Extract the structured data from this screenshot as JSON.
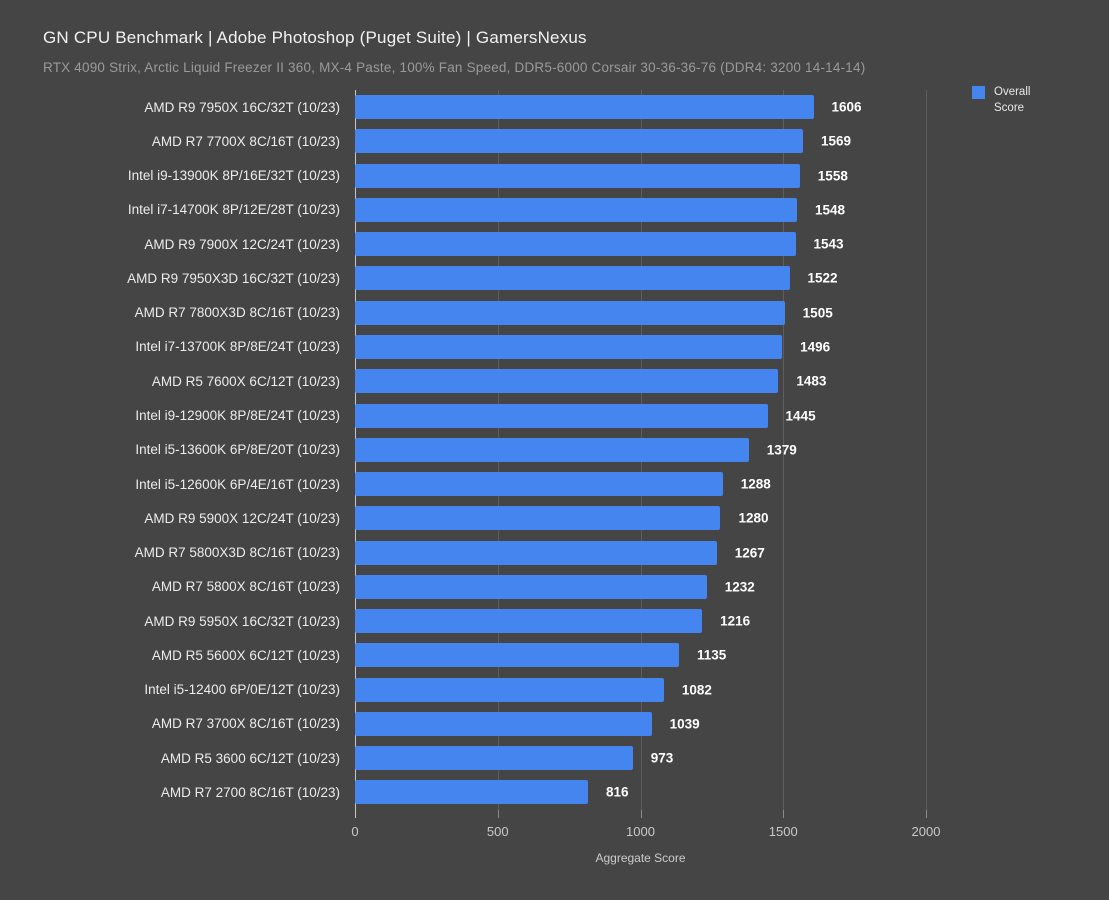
{
  "header": {
    "title": "GN CPU Benchmark | Adobe Photoshop (Puget Suite) | GamersNexus",
    "subtitle": "RTX 4090 Strix, Arctic Liquid Freezer II 360, MX-4 Paste, 100% Fan Speed, DDR5-6000 Corsair 30-36-36-76 (DDR4: 3200 14-14-14)"
  },
  "legend": {
    "label": "Overall Score",
    "swatch_color": "#4585f0",
    "position": "top-right"
  },
  "chart_data": {
    "type": "bar",
    "orientation": "horizontal",
    "title": "GN CPU Benchmark | Adobe Photoshop (Puget Suite) | GamersNexus",
    "subtitle": "RTX 4090 Strix, Arctic Liquid Freezer II 360, MX-4 Paste, 100% Fan Speed, DDR5-6000 Corsair 30-36-36-76 (DDR4: 3200 14-14-14)",
    "series_name": "Overall Score",
    "categories": [
      "AMD R9 7950X 16C/32T (10/23)",
      "AMD R7 7700X 8C/16T (10/23)",
      "Intel i9-13900K 8P/16E/32T (10/23)",
      "Intel i7-14700K 8P/12E/28T (10/23)",
      "AMD R9 7900X 12C/24T (10/23)",
      "AMD R9 7950X3D 16C/32T (10/23)",
      "AMD R7 7800X3D 8C/16T (10/23)",
      "Intel i7-13700K 8P/8E/24T (10/23)",
      "AMD R5 7600X 6C/12T (10/23)",
      "Intel i9-12900K 8P/8E/24T (10/23)",
      "Intel i5-13600K 6P/8E/20T (10/23)",
      "Intel i5-12600K 6P/4E/16T (10/23)",
      "AMD R9 5900X 12C/24T (10/23)",
      "AMD R7 5800X3D 8C/16T (10/23)",
      "AMD R7 5800X 8C/16T (10/23)",
      "AMD R9 5950X 16C/32T (10/23)",
      "AMD R5 5600X 6C/12T (10/23)",
      "Intel i5-12400 6P/0E/12T (10/23)",
      "AMD R7 3700X 8C/16T (10/23)",
      "AMD R5 3600 6C/12T (10/23)",
      "AMD R7 2700 8C/16T (10/23)"
    ],
    "values": [
      1606,
      1569,
      1558,
      1548,
      1543,
      1522,
      1505,
      1496,
      1483,
      1445,
      1379,
      1288,
      1280,
      1267,
      1232,
      1216,
      1135,
      1082,
      1039,
      973,
      816
    ],
    "xlabel": "Aggregate Score",
    "xlim": [
      0,
      2000
    ],
    "xticks": [
      0,
      500,
      1000,
      1500,
      2000
    ],
    "grid": "vertical",
    "bar_color": "#4585f0",
    "background_color": "#454545"
  }
}
